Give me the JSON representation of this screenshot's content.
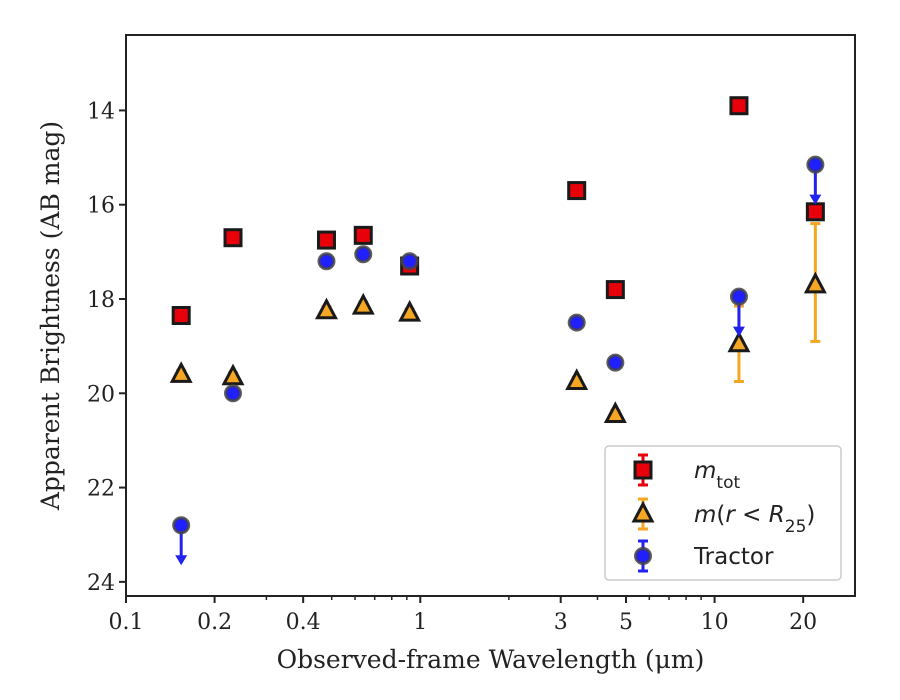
{
  "chart_data": {
    "type": "scatter",
    "xlabel": "Observed-frame Wavelength (μm)",
    "ylabel": "Apparent Brightness (AB mag)",
    "xscale": "log",
    "xlim": [
      0.1,
      30
    ],
    "ylim": [
      24.3,
      12.4
    ],
    "y_inverted": true,
    "x_ticks": [
      0.1,
      0.2,
      0.4,
      1,
      3,
      5,
      10,
      20
    ],
    "x_tick_labels": [
      "0.1",
      "0.2",
      "0.4",
      "1",
      "3",
      "5",
      "10",
      "20"
    ],
    "y_ticks": [
      14,
      16,
      18,
      20,
      22,
      24
    ],
    "y_tick_labels": [
      "14",
      "16",
      "18",
      "20",
      "22",
      "24"
    ],
    "grid": false,
    "legend_position": "lower right",
    "series": [
      {
        "name": "m_tot",
        "marker": "square",
        "face_color": "#e8000b",
        "edge_color": "#1a1a1a",
        "error_color": "#e8000b",
        "points": [
          {
            "x": 0.154,
            "y": 18.35
          },
          {
            "x": 0.231,
            "y": 16.7
          },
          {
            "x": 0.48,
            "y": 16.75
          },
          {
            "x": 0.64,
            "y": 16.65
          },
          {
            "x": 0.92,
            "y": 17.3
          },
          {
            "x": 3.4,
            "y": 15.7
          },
          {
            "x": 4.6,
            "y": 17.8
          },
          {
            "x": 12.1,
            "y": 13.9
          },
          {
            "x": 22.0,
            "y": 16.15
          }
        ]
      },
      {
        "name": "m(r < R25)",
        "marker": "triangle",
        "face_color": "#f5a623",
        "edge_color": "#1a1a1a",
        "error_color": "#f5a623",
        "points": [
          {
            "x": 0.154,
            "y": 19.6
          },
          {
            "x": 0.231,
            "y": 19.65
          },
          {
            "x": 0.48,
            "y": 18.25
          },
          {
            "x": 0.64,
            "y": 18.15
          },
          {
            "x": 0.92,
            "y": 18.3
          },
          {
            "x": 3.4,
            "y": 19.75
          },
          {
            "x": 4.6,
            "y": 20.45
          },
          {
            "x": 12.1,
            "y": 18.95,
            "err_low": 0.8,
            "err_high": 0.8
          },
          {
            "x": 22.0,
            "y": 17.7,
            "err_low": 1.3,
            "err_high": 1.2
          }
        ]
      },
      {
        "name": "Tractor",
        "marker": "circle",
        "face_color": "#1f1fff",
        "edge_color": "#444444",
        "error_color": "#2222ee",
        "points": [
          {
            "x": 0.154,
            "y": 22.8,
            "upper_limit": true
          },
          {
            "x": 0.231,
            "y": 20.0
          },
          {
            "x": 0.48,
            "y": 17.2
          },
          {
            "x": 0.64,
            "y": 17.05
          },
          {
            "x": 0.92,
            "y": 17.2
          },
          {
            "x": 3.4,
            "y": 18.5
          },
          {
            "x": 4.6,
            "y": 19.35
          },
          {
            "x": 12.1,
            "y": 17.95,
            "upper_limit": true
          },
          {
            "x": 22.0,
            "y": 15.15,
            "upper_limit": true
          }
        ]
      }
    ]
  }
}
